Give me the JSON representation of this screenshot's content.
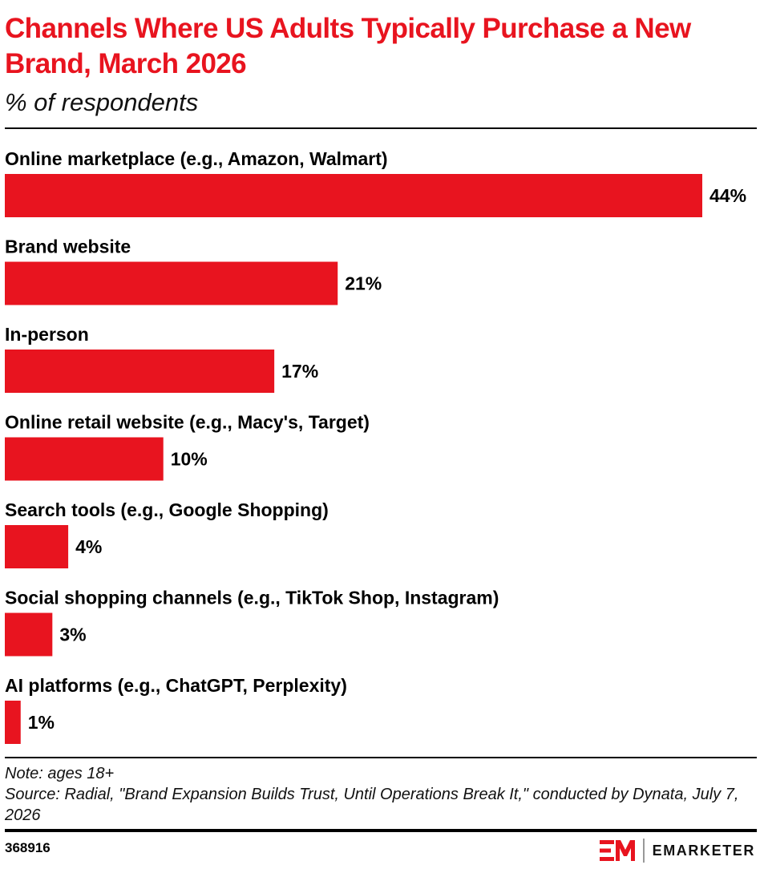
{
  "header": {
    "title": "Channels Where US Adults Typically Purchase a New Brand, March 2026",
    "subtitle": "% of respondents"
  },
  "chart_data": {
    "type": "bar",
    "orientation": "horizontal",
    "title": "Channels Where US Adults Typically Purchase a New Brand, March 2026",
    "subtitle": "% of respondents",
    "categories": [
      "Online marketplace (e.g., Amazon, Walmart)",
      "Brand website",
      "In-person",
      "Online retail website (e.g., Macy's, Target)",
      "Search tools (e.g., Google Shopping)",
      "Social shopping channels (e.g., TikTok Shop, Instagram)",
      "AI platforms (e.g., ChatGPT, Perplexity)"
    ],
    "values": [
      44,
      21,
      17,
      10,
      4,
      3,
      1
    ],
    "value_labels": [
      "44%",
      "21%",
      "17%",
      "10%",
      "4%",
      "3%",
      "1%"
    ],
    "xlim": [
      0,
      44
    ],
    "grid": false,
    "legend": "none",
    "colors": {
      "bar": "#e8141f"
    }
  },
  "footer": {
    "note": "Note: ages 18+",
    "source": "Source: Radial, \"Brand Expansion Builds Trust, Until Operations Break It,\" conducted by Dynata, July 7, 2026",
    "chart_id": "368916",
    "logo_mark": "EM",
    "logo_text": "EMARKETER"
  }
}
